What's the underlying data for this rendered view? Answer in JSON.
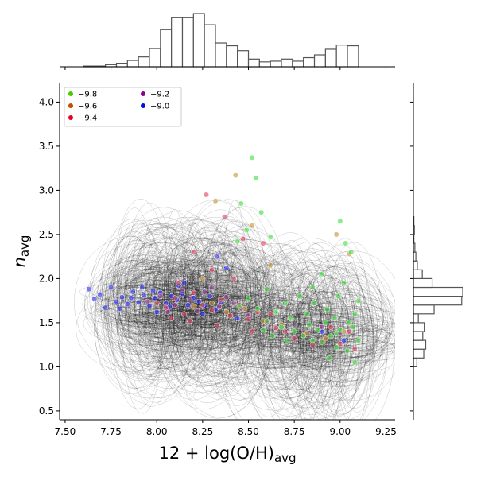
{
  "chart_data": {
    "type": "scatter",
    "title": "",
    "xlabel": "12 + log(O/H)",
    "xlabel_sub": "avg",
    "ylabel": "n",
    "ylabel_sub": "avg",
    "xlim": [
      7.47,
      9.3
    ],
    "ylim": [
      0.4,
      4.22
    ],
    "xticks": [
      7.5,
      7.75,
      8.0,
      8.25,
      8.5,
      8.75,
      9.0,
      9.25
    ],
    "xtick_labels": [
      "7.50",
      "7.75",
      "8.00",
      "8.25",
      "8.50",
      "8.75",
      "9.00",
      "9.25"
    ],
    "yticks": [
      0.5,
      1.0,
      1.5,
      2.0,
      2.5,
      3.0,
      3.5,
      4.0
    ],
    "ytick_labels": [
      "0.5",
      "1.0",
      "1.5",
      "2.0",
      "2.5",
      "3.0",
      "3.5",
      "4.0"
    ],
    "grid": false,
    "legend_position": "top-left",
    "legend": [
      {
        "label": "−9.8",
        "color": "#44cc00"
      },
      {
        "label": "−9.6",
        "color": "#c05000"
      },
      {
        "label": "−9.4",
        "color": "#e8001c"
      },
      {
        "label": "−9.2",
        "color": "#8c0090"
      },
      {
        "label": "−9.0",
        "color": "#0010e0"
      }
    ],
    "series": [
      {
        "name": "−9.0",
        "color": "#3030ff",
        "points": [
          [
            7.63,
            1.88
          ],
          [
            7.66,
            1.77
          ],
          [
            7.69,
            1.82
          ],
          [
            7.72,
            1.67
          ],
          [
            7.75,
            1.9
          ],
          [
            7.78,
            1.74
          ],
          [
            7.81,
            1.79
          ],
          [
            7.84,
            1.71
          ],
          [
            7.87,
            1.85
          ],
          [
            7.9,
            1.73
          ],
          [
            7.93,
            1.81
          ],
          [
            7.96,
            1.69
          ],
          [
            7.99,
            1.78
          ],
          [
            8.02,
            1.84
          ],
          [
            8.05,
            1.72
          ],
          [
            8.08,
            1.8
          ],
          [
            8.11,
            1.76
          ],
          [
            8.14,
            1.83
          ],
          [
            8.17,
            1.7
          ],
          [
            8.2,
            1.78
          ],
          [
            8.23,
            1.74
          ],
          [
            8.26,
            1.69
          ],
          [
            8.29,
            1.8
          ],
          [
            8.32,
            1.65
          ],
          [
            8.35,
            1.73
          ],
          [
            7.8,
            1.66
          ],
          [
            7.92,
            1.9
          ],
          [
            8.0,
            1.62
          ],
          [
            8.12,
            1.92
          ],
          [
            8.25,
            1.6
          ],
          [
            8.38,
            2.12
          ],
          [
            8.44,
            1.55
          ],
          [
            8.6,
            1.5
          ],
          [
            8.9,
            1.4
          ],
          [
            9.02,
            1.3
          ],
          [
            8.33,
            2.25
          ],
          [
            8.15,
            1.95
          ],
          [
            7.98,
            1.86
          ],
          [
            7.86,
            1.78
          ],
          [
            8.07,
            1.68
          ]
        ]
      },
      {
        "name": "−9.2",
        "color": "#a040a0",
        "points": [
          [
            7.95,
            1.74
          ],
          [
            8.02,
            1.8
          ],
          [
            8.1,
            1.7
          ],
          [
            8.18,
            1.77
          ],
          [
            8.26,
            1.85
          ],
          [
            8.34,
            1.68
          ],
          [
            8.42,
            1.72
          ],
          [
            8.06,
            1.62
          ],
          [
            8.3,
            1.9
          ],
          [
            8.5,
            1.58
          ],
          [
            8.14,
            1.86
          ],
          [
            8.22,
            1.63
          ],
          [
            8.38,
            1.79
          ],
          [
            8.46,
            1.66
          ],
          [
            8.9,
            1.45
          ],
          [
            9.0,
            1.38
          ]
        ]
      },
      {
        "name": "−9.4",
        "color": "#e04060",
        "points": [
          [
            8.0,
            1.72
          ],
          [
            8.05,
            1.67
          ],
          [
            8.1,
            1.78
          ],
          [
            8.15,
            1.6
          ],
          [
            8.2,
            1.84
          ],
          [
            8.25,
            1.7
          ],
          [
            8.3,
            1.64
          ],
          [
            8.35,
            1.76
          ],
          [
            8.4,
            1.58
          ],
          [
            8.45,
            1.7
          ],
          [
            8.5,
            1.54
          ],
          [
            8.55,
            1.62
          ],
          [
            8.6,
            1.5
          ],
          [
            8.65,
            1.44
          ],
          [
            8.7,
            1.4
          ],
          [
            8.8,
            1.36
          ],
          [
            8.9,
            1.3
          ],
          [
            9.0,
            1.26
          ],
          [
            9.05,
            1.4
          ],
          [
            8.27,
            2.95
          ],
          [
            8.37,
            2.7
          ],
          [
            8.47,
            2.45
          ],
          [
            8.2,
            2.3
          ],
          [
            8.58,
            2.4
          ],
          [
            8.3,
            2.1
          ],
          [
            8.12,
            1.95
          ],
          [
            8.42,
            2.0
          ],
          [
            8.62,
            1.6
          ],
          [
            8.85,
            1.25
          ],
          [
            8.95,
            1.45
          ],
          [
            8.18,
            1.52
          ],
          [
            8.33,
            1.47
          ],
          [
            8.08,
            1.55
          ],
          [
            8.52,
            1.4
          ],
          [
            8.75,
            1.32
          ],
          [
            9.08,
            1.2
          ]
        ]
      },
      {
        "name": "−9.6",
        "color": "#c89030",
        "points": [
          [
            8.2,
            1.68
          ],
          [
            8.3,
            1.72
          ],
          [
            8.38,
            1.62
          ],
          [
            8.48,
            1.66
          ],
          [
            8.58,
            1.52
          ],
          [
            8.68,
            1.48
          ],
          [
            8.82,
            1.38
          ],
          [
            8.92,
            1.32
          ],
          [
            9.02,
            1.4
          ],
          [
            8.43,
            3.17
          ],
          [
            8.32,
            2.88
          ],
          [
            8.52,
            2.6
          ],
          [
            8.98,
            2.5
          ],
          [
            9.05,
            2.28
          ],
          [
            8.62,
            2.15
          ],
          [
            8.25,
            2.0
          ]
        ]
      },
      {
        "name": "−9.8",
        "color": "#40e040",
        "points": [
          [
            8.52,
            3.37
          ],
          [
            8.54,
            3.14
          ],
          [
            8.46,
            2.85
          ],
          [
            8.49,
            2.55
          ],
          [
            8.62,
            2.47
          ],
          [
            8.57,
            2.75
          ],
          [
            8.44,
            2.42
          ],
          [
            9.0,
            2.65
          ],
          [
            9.03,
            2.4
          ],
          [
            9.06,
            2.3
          ],
          [
            8.9,
            2.05
          ],
          [
            8.85,
            1.9
          ],
          [
            8.78,
            1.8
          ],
          [
            8.7,
            1.72
          ],
          [
            8.65,
            1.62
          ],
          [
            8.55,
            1.66
          ],
          [
            8.6,
            1.52
          ],
          [
            8.68,
            1.45
          ],
          [
            8.75,
            1.4
          ],
          [
            8.8,
            1.35
          ],
          [
            8.85,
            1.3
          ],
          [
            8.9,
            1.28
          ],
          [
            8.95,
            1.35
          ],
          [
            9.0,
            1.42
          ],
          [
            9.05,
            1.5
          ],
          [
            9.08,
            1.6
          ],
          [
            8.97,
            1.55
          ],
          [
            8.92,
            1.5
          ],
          [
            8.88,
            1.42
          ],
          [
            8.83,
            1.48
          ],
          [
            8.73,
            1.55
          ],
          [
            8.63,
            1.35
          ],
          [
            8.58,
            1.42
          ],
          [
            8.98,
            1.22
          ],
          [
            9.04,
            1.18
          ],
          [
            9.1,
            1.3
          ],
          [
            9.07,
            1.45
          ],
          [
            8.93,
            1.65
          ],
          [
            8.86,
            1.72
          ],
          [
            8.99,
            1.8
          ],
          [
            9.02,
            1.95
          ],
          [
            8.6,
            1.88
          ],
          [
            8.5,
            1.78
          ],
          [
            8.45,
            1.68
          ],
          [
            8.94,
            1.1
          ],
          [
            9.08,
            1.05
          ],
          [
            8.71,
            1.3
          ],
          [
            8.82,
            1.6
          ],
          [
            9.1,
            1.75
          ],
          [
            8.98,
            1.38
          ]
        ]
      }
    ],
    "ellipse_cloud": {
      "color": "#000000",
      "description_free": true,
      "clusters": [
        {
          "x_range": [
            7.85,
            8.5
          ],
          "y_range": [
            1.4,
            2.0
          ]
        },
        {
          "x_range": [
            8.6,
            9.1
          ],
          "y_range": [
            1.1,
            1.6
          ]
        }
      ]
    },
    "top_histogram": {
      "bin_edges": [
        7.6,
        7.66,
        7.72,
        7.78,
        7.84,
        7.9,
        7.96,
        8.02,
        8.08,
        8.14,
        8.2,
        8.26,
        8.32,
        8.38,
        8.44,
        8.5,
        8.56,
        8.62,
        8.68,
        8.74,
        8.8,
        8.86,
        8.92,
        8.98,
        9.04,
        9.1
      ],
      "counts": [
        1,
        1,
        3,
        5,
        9,
        14,
        26,
        53,
        70,
        70,
        76,
        60,
        34,
        30,
        23,
        11,
        7,
        8,
        11,
        8,
        13,
        17,
        25,
        31,
        30
      ]
    },
    "right_histogram": {
      "bin_edges": [
        1.0,
        1.1,
        1.2,
        1.3,
        1.4,
        1.5,
        1.6,
        1.7,
        1.8,
        1.9,
        2.0,
        2.1,
        2.2,
        2.3,
        2.4,
        2.5,
        2.6,
        2.7
      ],
      "counts": [
        7,
        21,
        25,
        19,
        22,
        10,
        42,
        98,
        100,
        38,
        18,
        8,
        5,
        3,
        1,
        2,
        1
      ]
    }
  }
}
